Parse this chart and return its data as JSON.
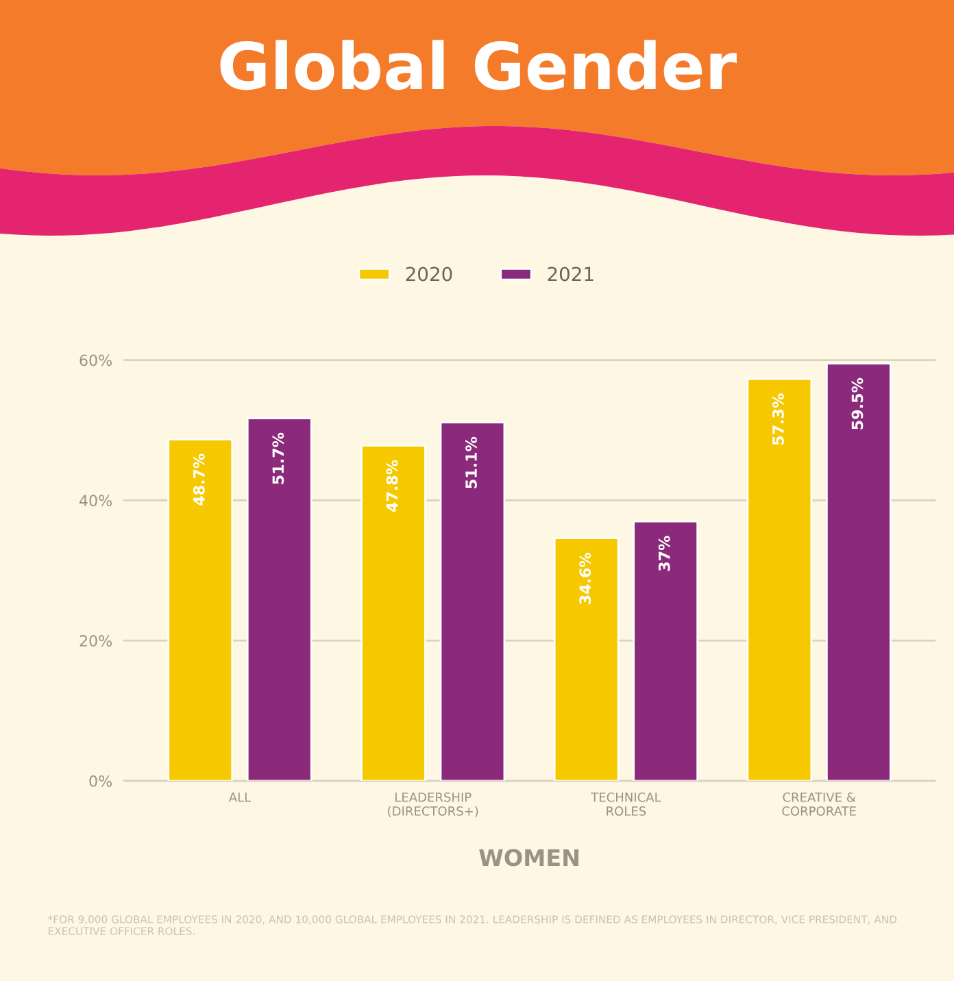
{
  "chart_data": {
    "type": "bar",
    "title": "Global Gender",
    "xlabel": "WOMEN",
    "categories": [
      "ALL",
      "LEADERSHIP\n(DIRECTORS+)",
      "TECHNICAL\nROLES",
      "CREATIVE &\nCORPORATE"
    ],
    "series": [
      {
        "name": "2020",
        "color": "#f5c800",
        "values": [
          48.7,
          47.8,
          34.6,
          57.3
        ],
        "value_labels": [
          "48.7%",
          "47.8%",
          "34.6%",
          "57.3%"
        ]
      },
      {
        "name": "2021",
        "color": "#8b2a7a",
        "values": [
          51.7,
          51.1,
          37,
          59.5
        ],
        "value_labels": [
          "51.7%",
          "51.1%",
          "37%",
          "59.5%"
        ]
      }
    ],
    "ylim": [
      0,
      60
    ],
    "yticks": [
      {
        "value": 0,
        "label": "0%"
      },
      {
        "value": 20,
        "label": "20%"
      },
      {
        "value": 40,
        "label": "40%"
      },
      {
        "value": 60,
        "label": "60%"
      }
    ],
    "grid": "y",
    "legend": "top",
    "annotations": [
      "*FOR 9,000 GLOBAL EMPLOYEES IN 2020, AND 10,000 GLOBAL EMPLOYEES IN 2021. LEADERSHIP IS DEFINED AS EMPLOYEES IN DIRECTOR, VICE PRESIDENT, AND EXECUTIVE OFFICER ROLES."
    ]
  }
}
